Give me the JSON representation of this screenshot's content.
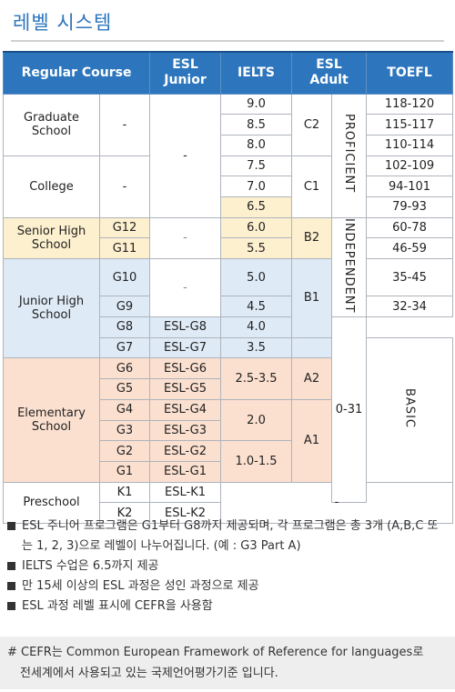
{
  "page": {
    "title": "레벨 시스템"
  },
  "table": {
    "headers": {
      "regular": "Regular Course",
      "esl_junior_1": "ESL",
      "esl_junior_2": "Junior",
      "ielts": "IELTS",
      "esl_adult_1": "ESL",
      "esl_adult_2": "Adult",
      "toefl": "TOEFL"
    },
    "groups": {
      "graduate": [
        "Graduate",
        "School"
      ],
      "college": "College",
      "senior": [
        "Senior High",
        "School"
      ],
      "junior": [
        "Junior High",
        "School"
      ],
      "elementary": [
        "Elementary",
        "School"
      ],
      "preschool": "Preschool"
    },
    "dash": "-",
    "grades": [
      "G12",
      "G11",
      "G10",
      "G9",
      "G8",
      "G7",
      "G6",
      "G5",
      "G4",
      "G3",
      "G2",
      "G1",
      "K1",
      "K2"
    ],
    "esl_junior": [
      "ESL-G8",
      "ESL-G7",
      "ESL-G6",
      "ESL-G5",
      "ESL-G4",
      "ESL-G3",
      "ESL-G2",
      "ESL-G1",
      "ESL-K1",
      "ESL-K2"
    ],
    "ielts": [
      "9.0",
      "8.5",
      "8.0",
      "7.5",
      "7.0",
      "6.5",
      "6.0",
      "5.5",
      "5.0",
      "4.5",
      "4.0",
      "3.5",
      "2.5-3.5",
      "2.0",
      "1.0-1.5"
    ],
    "cefr": [
      "C2",
      "C1",
      "B2",
      "B1",
      "A2",
      "A1"
    ],
    "bands": [
      "PROFICIENT",
      "INDEPENDENT",
      "BASIC"
    ],
    "toefl": [
      "118-120",
      "115-117",
      "110-114",
      "102-109",
      "94-101",
      "79-93",
      "60-78",
      "46-59",
      "35-45",
      "32-34",
      "0-31"
    ]
  },
  "notes": [
    "ESL 주니어 프로그램은 G1부터 G8까지 제공되며, 각 프로그램은 총 3개 (A,B,C 또는 1, 2, 3)으로 레벨이 나누어집니다. (예 : G3 Part A)",
    "IELTS 수업은 6.5까지 제공",
    "만 15세 이상의 ESL 과정은 성인 과정으로 제공",
    "ESL 과정 레벨 표시에 CEFR을 사용함"
  ],
  "footnote": {
    "line1": "# CEFR는 Common European Framework of Reference for languages로",
    "line2": "전세계에서 사용되고 있는 국제언어평가기준 입니다."
  },
  "colors": {
    "header": "#2d76bd",
    "title": "#2b74bd",
    "senior": "#fdf0cf",
    "junior": "#deeaf6",
    "elementary": "#fbe0d0"
  }
}
